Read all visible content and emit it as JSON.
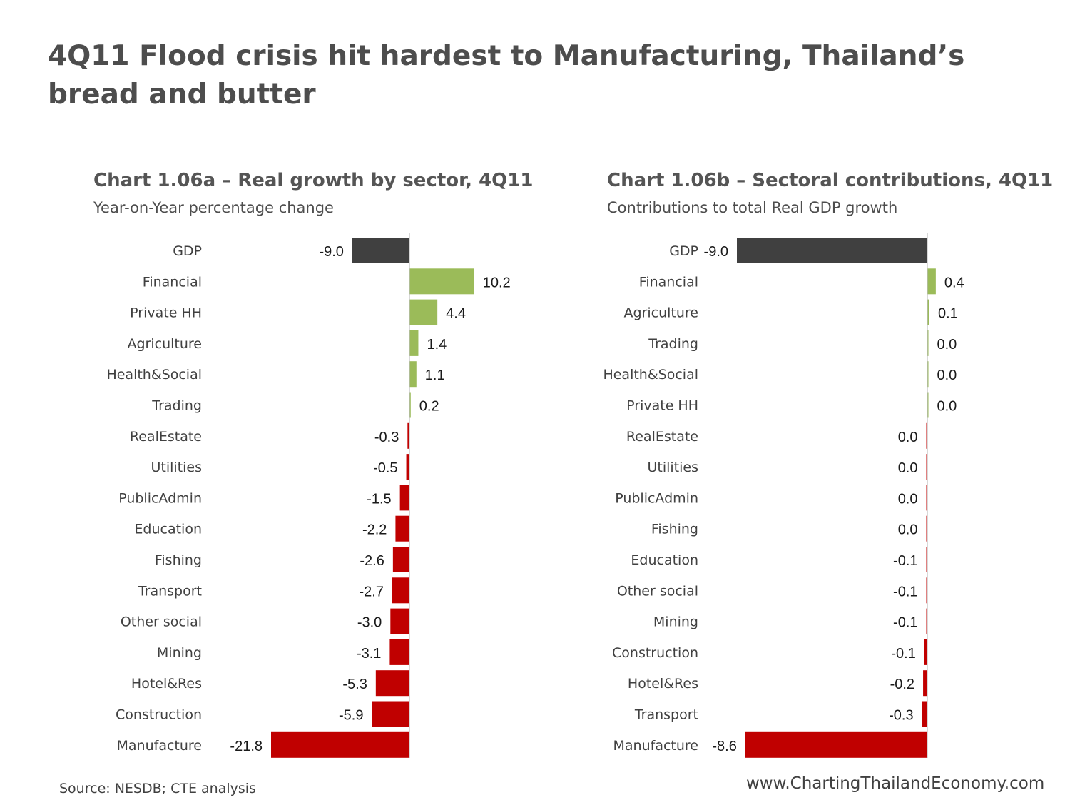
{
  "title": "4Q11 Flood crisis hit hardest to Manufacturing, Thailand’s bread and butter",
  "colors": {
    "total": "#404040",
    "positive": "#9bbb59",
    "negative": "#c00000",
    "axis": "#bfbfbf"
  },
  "chart_data": [
    {
      "type": "bar",
      "orientation": "horizontal",
      "title": "Chart 1.06a – Real growth by sector, 4Q11",
      "subtitle": "Year-on-Year percentage change",
      "categories": [
        "GDP",
        "Financial",
        "Private HH",
        "Agriculture",
        "Health&Social",
        "Trading",
        "RealEstate",
        "Utilities",
        "PublicAdmin",
        "Education",
        "Fishing",
        "Transport",
        "Other social",
        "Mining",
        "Hotel&Res",
        "Construction",
        "Manufacture"
      ],
      "values": [
        -9.0,
        10.2,
        4.4,
        1.4,
        1.1,
        0.2,
        -0.3,
        -0.5,
        -1.5,
        -2.2,
        -2.6,
        -2.7,
        -3.0,
        -3.1,
        -5.3,
        -5.9,
        -21.8
      ],
      "labels": [
        "-9.0",
        "10.2",
        "4.4",
        "1.4",
        "1.1",
        "0.2",
        "-0.3",
        "-0.5",
        "-1.5",
        "-2.2",
        "-2.6",
        "-2.7",
        "-3.0",
        "-3.1",
        "-5.3",
        "-5.9",
        "-21.8"
      ],
      "xlim": [
        -21.8,
        10.2
      ],
      "grid": false,
      "legend": "none"
    },
    {
      "type": "bar",
      "orientation": "horizontal",
      "title": "Chart 1.06b – Sectoral contributions, 4Q11",
      "subtitle": "Contributions to total Real GDP growth",
      "categories": [
        "GDP",
        "Financial",
        "Agriculture",
        "Trading",
        "Health&Social",
        "Private HH",
        "RealEstate",
        "Utilities",
        "PublicAdmin",
        "Fishing",
        "Education",
        "Other social",
        "Mining",
        "Construction",
        "Hotel&Res",
        "Transport",
        "Manufacture"
      ],
      "values": [
        -9.0,
        0.4,
        0.1,
        0.02,
        0.02,
        0.02,
        -0.01,
        -0.01,
        -0.03,
        -0.03,
        -0.05,
        -0.05,
        -0.05,
        -0.14,
        -0.2,
        -0.25,
        -8.6
      ],
      "labels": [
        "-9.0",
        "0.4",
        "0.1",
        "0.0",
        "0.0",
        "0.0",
        "0.0",
        "0.0",
        "0.0",
        "0.0",
        "-0.1",
        "-0.1",
        "-0.1",
        "-0.1",
        "-0.2",
        "-0.3",
        "-8.6"
      ],
      "xlim": [
        -9.0,
        0.4
      ],
      "grid": false,
      "legend": "none"
    }
  ],
  "footer": {
    "source": "Source: NESDB; CTE analysis",
    "website": "www.ChartingThailandEconomy.com"
  }
}
